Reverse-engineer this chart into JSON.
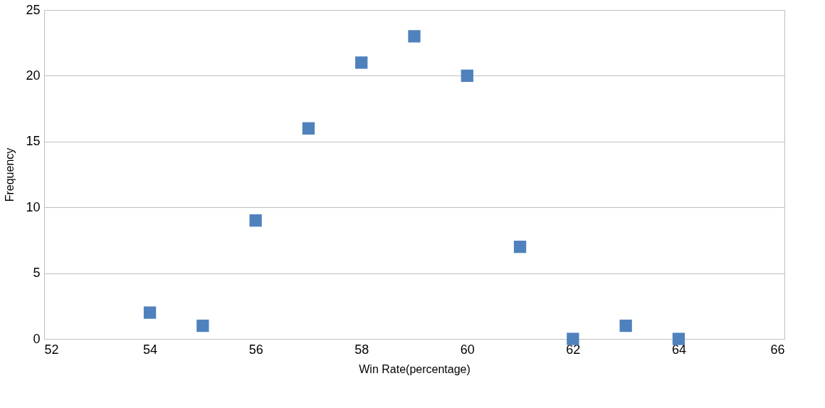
{
  "chart_data": {
    "type": "scatter",
    "xlabel": "Win Rate(percentage)",
    "ylabel": "Frequency",
    "x": [
      54,
      55,
      56,
      57,
      58,
      59,
      60,
      61,
      62,
      63,
      64
    ],
    "series": [
      {
        "color": "#4f81bd",
        "values": [
          2,
          1,
          9,
          16,
          21,
          23,
          20,
          7,
          0,
          1,
          0
        ]
      }
    ],
    "xlim": [
      52,
      66
    ],
    "xticks": [
      52,
      54,
      56,
      58,
      60,
      62,
      64,
      66
    ],
    "ylim": [
      0,
      25
    ],
    "yticks": [
      0,
      5,
      10,
      15,
      20,
      25
    ],
    "grid": "y",
    "marker": "square",
    "legend": false
  }
}
